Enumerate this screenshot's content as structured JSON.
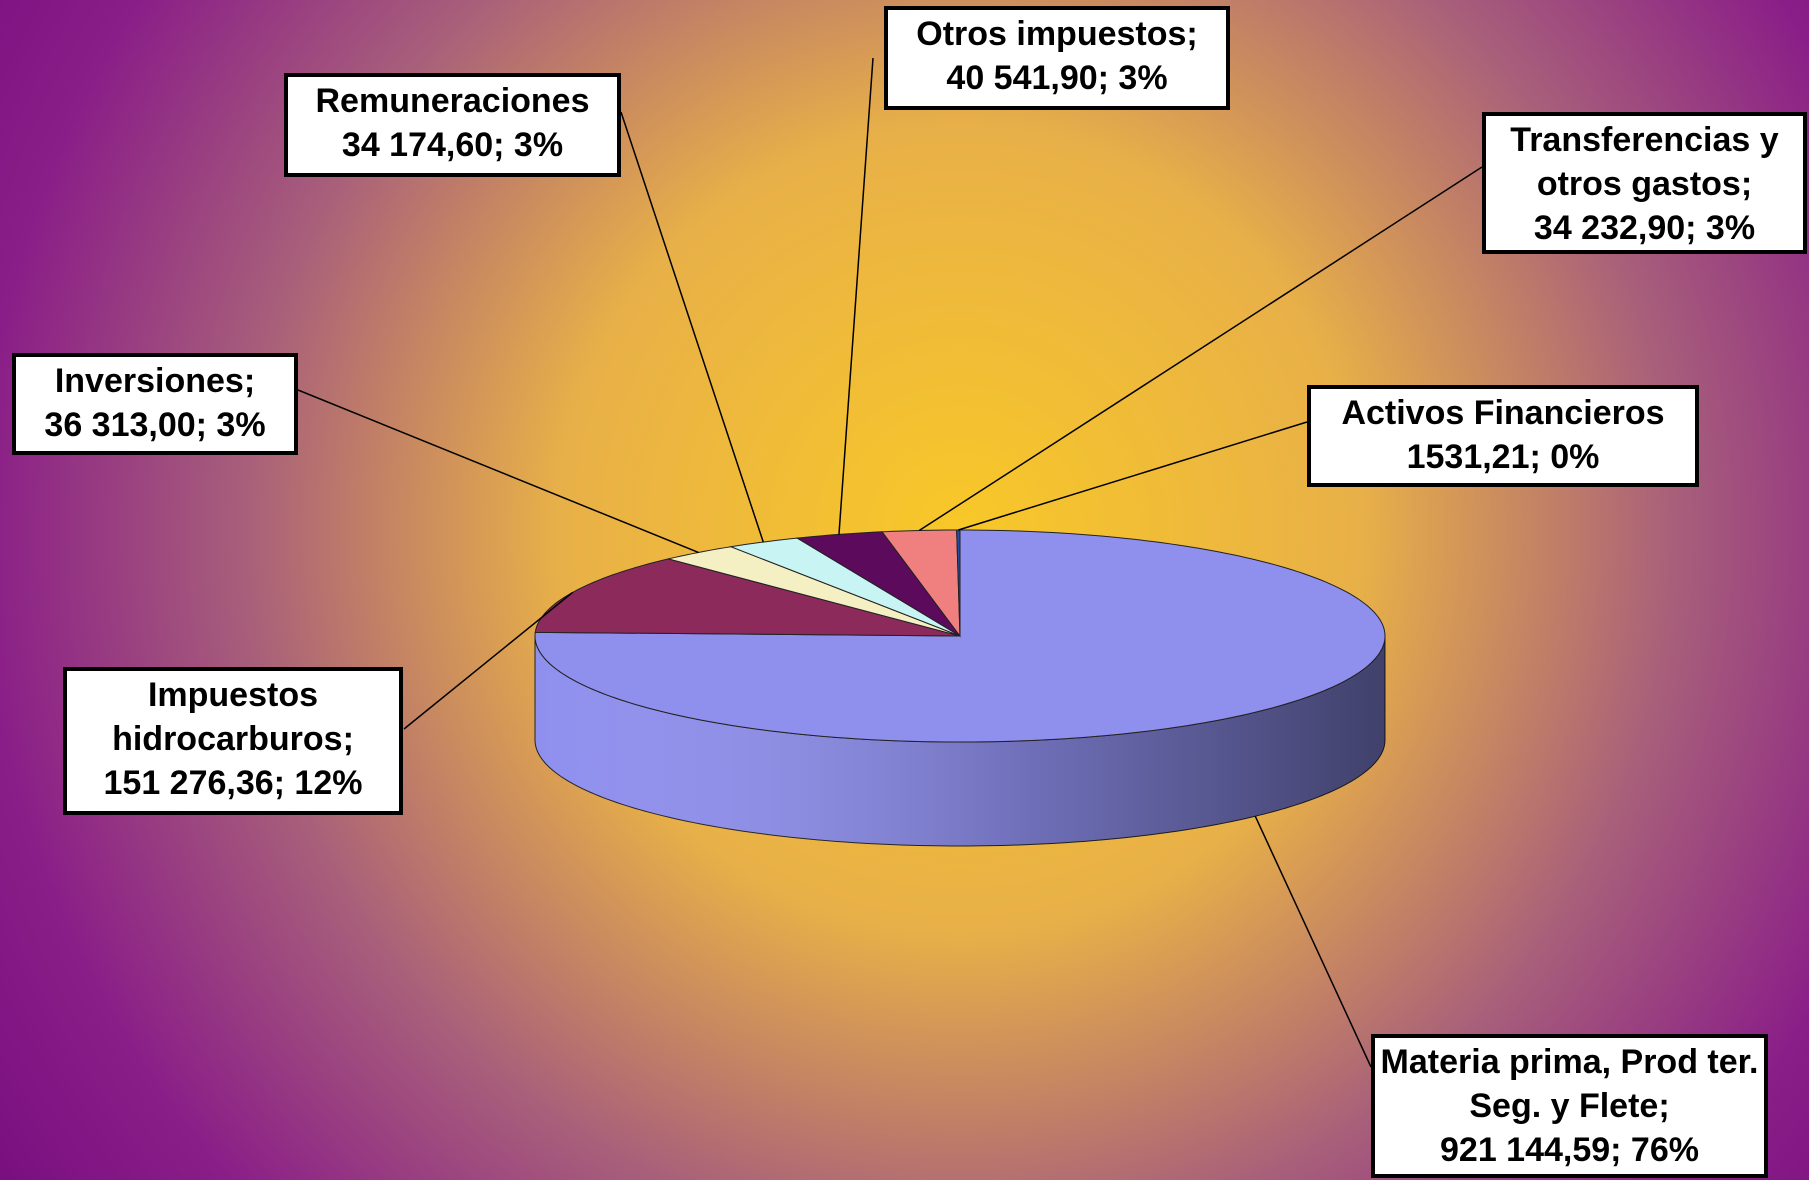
{
  "chart_data": {
    "type": "pie3d",
    "categories": [
      "Materia prima,  Prod ter. Seg. y Flete;",
      "Impuestos hidrocarburos;",
      "Inversiones;",
      "Remuneraciones",
      "Otros impuestos;",
      "Transferencias y otros gastos;",
      "Activos Financieros"
    ],
    "values": [
      921144.59,
      151276.36,
      36313.0,
      34174.6,
      40541.9,
      34232.9,
      1531.21
    ],
    "value_labels": [
      "921 144,59; 76%",
      "151 276,36; 12%",
      "36 313,00; 3%",
      "34 174,60; 3%",
      "40 541,90; 3%",
      "34 232,90; 3%",
      "1531,21; 0%"
    ],
    "colors": [
      "#8f8fee",
      "#8c2a5c",
      "#f4f0c4",
      "#c8f4f4",
      "#5c0a5c",
      "#f08080",
      "#2050a0"
    ]
  }
}
